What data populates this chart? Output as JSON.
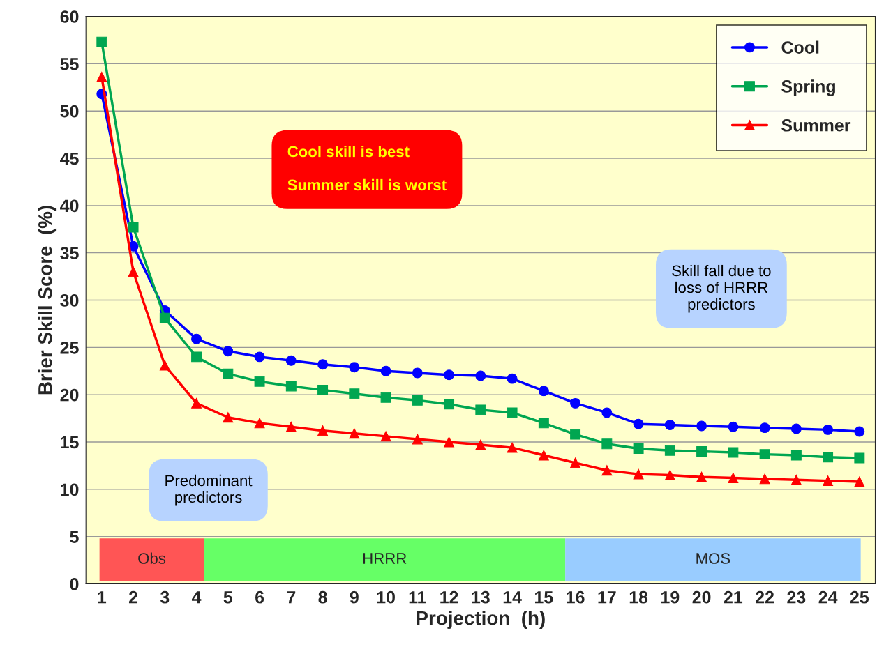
{
  "chart_data": {
    "type": "line",
    "xlabel": "Projection  (h)",
    "ylabel": "Brier Skill Score  (%)",
    "x": [
      1,
      2,
      3,
      4,
      5,
      6,
      7,
      8,
      9,
      10,
      11,
      12,
      13,
      14,
      15,
      16,
      17,
      18,
      19,
      20,
      21,
      22,
      23,
      24,
      25
    ],
    "xlim": [
      0.5,
      25.5
    ],
    "xticks": [
      1,
      2,
      3,
      4,
      5,
      6,
      7,
      8,
      9,
      10,
      11,
      12,
      13,
      14,
      15,
      16,
      17,
      18,
      19,
      20,
      21,
      22,
      23,
      24,
      25
    ],
    "ylim": [
      0,
      60
    ],
    "yticks": [
      0,
      5,
      10,
      15,
      20,
      25,
      30,
      35,
      40,
      45,
      50,
      55,
      60
    ],
    "grid": "y",
    "legend": "top right",
    "series": [
      {
        "name": "Cool",
        "color": "#0000ff",
        "marker": "circle",
        "values": [
          51.8,
          35.7,
          28.9,
          25.9,
          24.6,
          24.0,
          23.6,
          23.2,
          22.9,
          22.5,
          22.3,
          22.1,
          22.0,
          21.7,
          20.4,
          19.1,
          18.1,
          16.9,
          16.8,
          16.7,
          16.6,
          16.5,
          16.4,
          16.3,
          16.1
        ]
      },
      {
        "name": "Spring",
        "color": "#00a651",
        "marker": "square",
        "values": [
          57.3,
          37.7,
          28.1,
          24.0,
          22.2,
          21.4,
          20.9,
          20.5,
          20.1,
          19.7,
          19.4,
          19.0,
          18.4,
          18.1,
          17.0,
          15.8,
          14.8,
          14.3,
          14.1,
          14.0,
          13.9,
          13.7,
          13.6,
          13.4,
          13.3
        ]
      },
      {
        "name": "Summer",
        "color": "#ff0000",
        "marker": "triangle",
        "values": [
          53.6,
          33.0,
          23.1,
          19.1,
          17.6,
          17.0,
          16.6,
          16.2,
          15.9,
          15.6,
          15.3,
          15.0,
          14.7,
          14.4,
          13.6,
          12.8,
          12.0,
          11.6,
          11.5,
          11.3,
          11.2,
          11.1,
          11.0,
          10.9,
          10.8
        ]
      }
    ],
    "bands": [
      {
        "axis": "x",
        "from": 0.93,
        "to": 4.24,
        "label": "Obs",
        "color": "#ff5555"
      },
      {
        "axis": "x",
        "from": 4.24,
        "to": 15.68,
        "label": "HRRR",
        "color": "#66ff66"
      },
      {
        "axis": "x",
        "from": 15.68,
        "to": 25.04,
        "label": "MOS",
        "color": "#99ccff"
      }
    ],
    "annotations": [
      "Cool skill is best\n\nSummer skill is worst",
      "Skill fall due to\nloss of HRRR\npredictors",
      "Predominant\npredictors"
    ]
  }
}
